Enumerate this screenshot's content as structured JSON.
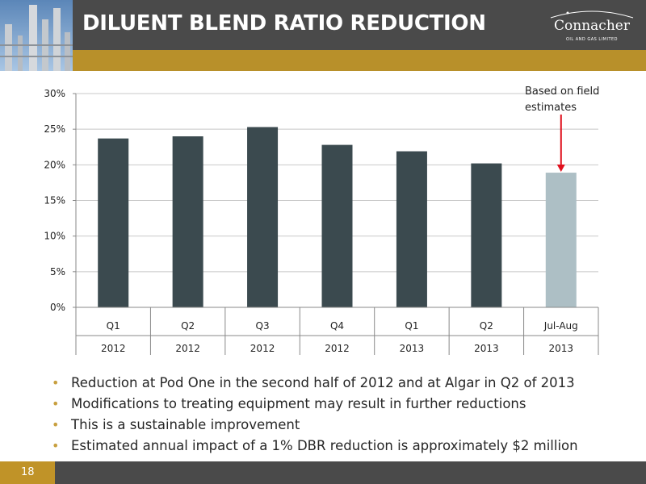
{
  "slide": {
    "title": "DILUENT BLEND RATIO REDUCTION",
    "page_number": "18",
    "logo": {
      "name": "Connacher",
      "tagline": "OIL AND GAS LIMITED"
    }
  },
  "annotation": {
    "text": "Based on field estimates"
  },
  "bullets": [
    "Reduction at Pod One in the second half of 2012 and at Algar in Q2 of 2013",
    "Modifications to treating equipment may result in further reductions",
    "This is a sustainable improvement",
    "Estimated annual impact of a 1% DBR reduction is approximately $2 million"
  ],
  "colors": {
    "bar_actual": "#3b4a4f",
    "bar_estimate": "#adbfc5",
    "arrow": "#e0101e",
    "accent_gold": "#b8902a",
    "header": "#4a4a4a"
  },
  "chart_data": {
    "type": "bar",
    "categories": [
      {
        "period": "Q1",
        "year": "2012"
      },
      {
        "period": "Q2",
        "year": "2012"
      },
      {
        "period": "Q3",
        "year": "2012"
      },
      {
        "period": "Q4",
        "year": "2012"
      },
      {
        "period": "Q1",
        "year": "2013"
      },
      {
        "period": "Q2",
        "year": "2013"
      },
      {
        "period": "Jul-Aug",
        "year": "2013"
      }
    ],
    "values": [
      23.7,
      24.0,
      25.3,
      22.8,
      21.9,
      20.2,
      18.9
    ],
    "estimated": [
      false,
      false,
      false,
      false,
      false,
      false,
      true
    ],
    "y_ticks": [
      "0%",
      "5%",
      "10%",
      "15%",
      "20%",
      "25%",
      "30%"
    ],
    "ylim": [
      0,
      30
    ],
    "grid": true,
    "legend": "none"
  }
}
